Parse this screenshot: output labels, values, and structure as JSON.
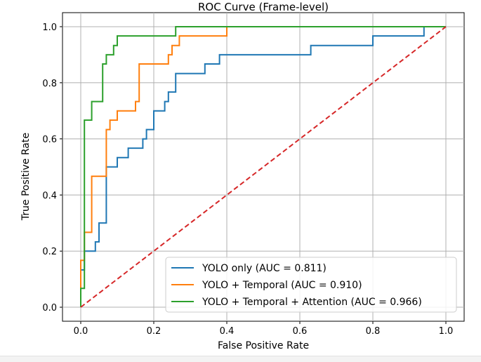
{
  "chart_data": {
    "type": "line",
    "title": "ROC Curve (Frame-level)",
    "xlabel": "False Positive Rate",
    "ylabel": "True Positive Rate",
    "xlim": [
      -0.05,
      1.05
    ],
    "ylim": [
      -0.05,
      1.05
    ],
    "xticks": [
      0.0,
      0.2,
      0.4,
      0.6,
      0.8,
      1.0
    ],
    "yticks": [
      0.0,
      0.2,
      0.4,
      0.6,
      0.8,
      1.0
    ],
    "xtick_labels": [
      "0.0",
      "0.2",
      "0.4",
      "0.6",
      "0.8",
      "1.0"
    ],
    "ytick_labels": [
      "0.0",
      "0.2",
      "0.4",
      "0.6",
      "0.8",
      "1.0"
    ],
    "grid": true,
    "legend_position": "lower-right",
    "series": [
      {
        "name": "YOLO only (AUC = 0.811)",
        "color": "#1f77b4",
        "style": "solid",
        "points": [
          [
            0,
            0
          ],
          [
            0,
            0.133
          ],
          [
            0.01,
            0.133
          ],
          [
            0.01,
            0.2
          ],
          [
            0.04,
            0.2
          ],
          [
            0.04,
            0.233
          ],
          [
            0.05,
            0.233
          ],
          [
            0.05,
            0.3
          ],
          [
            0.07,
            0.3
          ],
          [
            0.07,
            0.5
          ],
          [
            0.1,
            0.5
          ],
          [
            0.1,
            0.533
          ],
          [
            0.13,
            0.533
          ],
          [
            0.13,
            0.567
          ],
          [
            0.17,
            0.567
          ],
          [
            0.17,
            0.6
          ],
          [
            0.18,
            0.6
          ],
          [
            0.18,
            0.633
          ],
          [
            0.2,
            0.633
          ],
          [
            0.2,
            0.7
          ],
          [
            0.23,
            0.7
          ],
          [
            0.23,
            0.733
          ],
          [
            0.24,
            0.733
          ],
          [
            0.24,
            0.767
          ],
          [
            0.26,
            0.767
          ],
          [
            0.26,
            0.833
          ],
          [
            0.34,
            0.833
          ],
          [
            0.34,
            0.867
          ],
          [
            0.38,
            0.867
          ],
          [
            0.38,
            0.9
          ],
          [
            0.63,
            0.9
          ],
          [
            0.63,
            0.933
          ],
          [
            0.8,
            0.933
          ],
          [
            0.8,
            0.967
          ],
          [
            0.94,
            0.967
          ],
          [
            0.94,
            1.0
          ],
          [
            1.0,
            1.0
          ]
        ]
      },
      {
        "name": "YOLO + Temporal (AUC = 0.910)",
        "color": "#ff7f0e",
        "style": "solid",
        "points": [
          [
            0,
            0
          ],
          [
            0,
            0.167
          ],
          [
            0.01,
            0.167
          ],
          [
            0.01,
            0.267
          ],
          [
            0.03,
            0.267
          ],
          [
            0.03,
            0.467
          ],
          [
            0.07,
            0.467
          ],
          [
            0.07,
            0.633
          ],
          [
            0.08,
            0.633
          ],
          [
            0.08,
            0.667
          ],
          [
            0.1,
            0.667
          ],
          [
            0.1,
            0.7
          ],
          [
            0.15,
            0.7
          ],
          [
            0.15,
            0.733
          ],
          [
            0.16,
            0.733
          ],
          [
            0.16,
            0.867
          ],
          [
            0.24,
            0.867
          ],
          [
            0.24,
            0.9
          ],
          [
            0.25,
            0.9
          ],
          [
            0.25,
            0.933
          ],
          [
            0.27,
            0.933
          ],
          [
            0.27,
            0.967
          ],
          [
            0.4,
            0.967
          ],
          [
            0.4,
            1.0
          ],
          [
            1.0,
            1.0
          ]
        ]
      },
      {
        "name": "YOLO + Temporal + Attention (AUC = 0.966)",
        "color": "#2ca02c",
        "style": "solid",
        "points": [
          [
            0,
            0
          ],
          [
            0,
            0.067
          ],
          [
            0.01,
            0.067
          ],
          [
            0.01,
            0.667
          ],
          [
            0.03,
            0.667
          ],
          [
            0.03,
            0.733
          ],
          [
            0.06,
            0.733
          ],
          [
            0.06,
            0.867
          ],
          [
            0.07,
            0.867
          ],
          [
            0.07,
            0.9
          ],
          [
            0.09,
            0.9
          ],
          [
            0.09,
            0.933
          ],
          [
            0.1,
            0.933
          ],
          [
            0.1,
            0.967
          ],
          [
            0.26,
            0.967
          ],
          [
            0.26,
            1.0
          ],
          [
            1.0,
            1.0
          ]
        ]
      },
      {
        "name": "Chance",
        "color": "#d62728",
        "style": "dashed",
        "in_legend": false,
        "points": [
          [
            0,
            0
          ],
          [
            1,
            1
          ]
        ]
      }
    ]
  }
}
